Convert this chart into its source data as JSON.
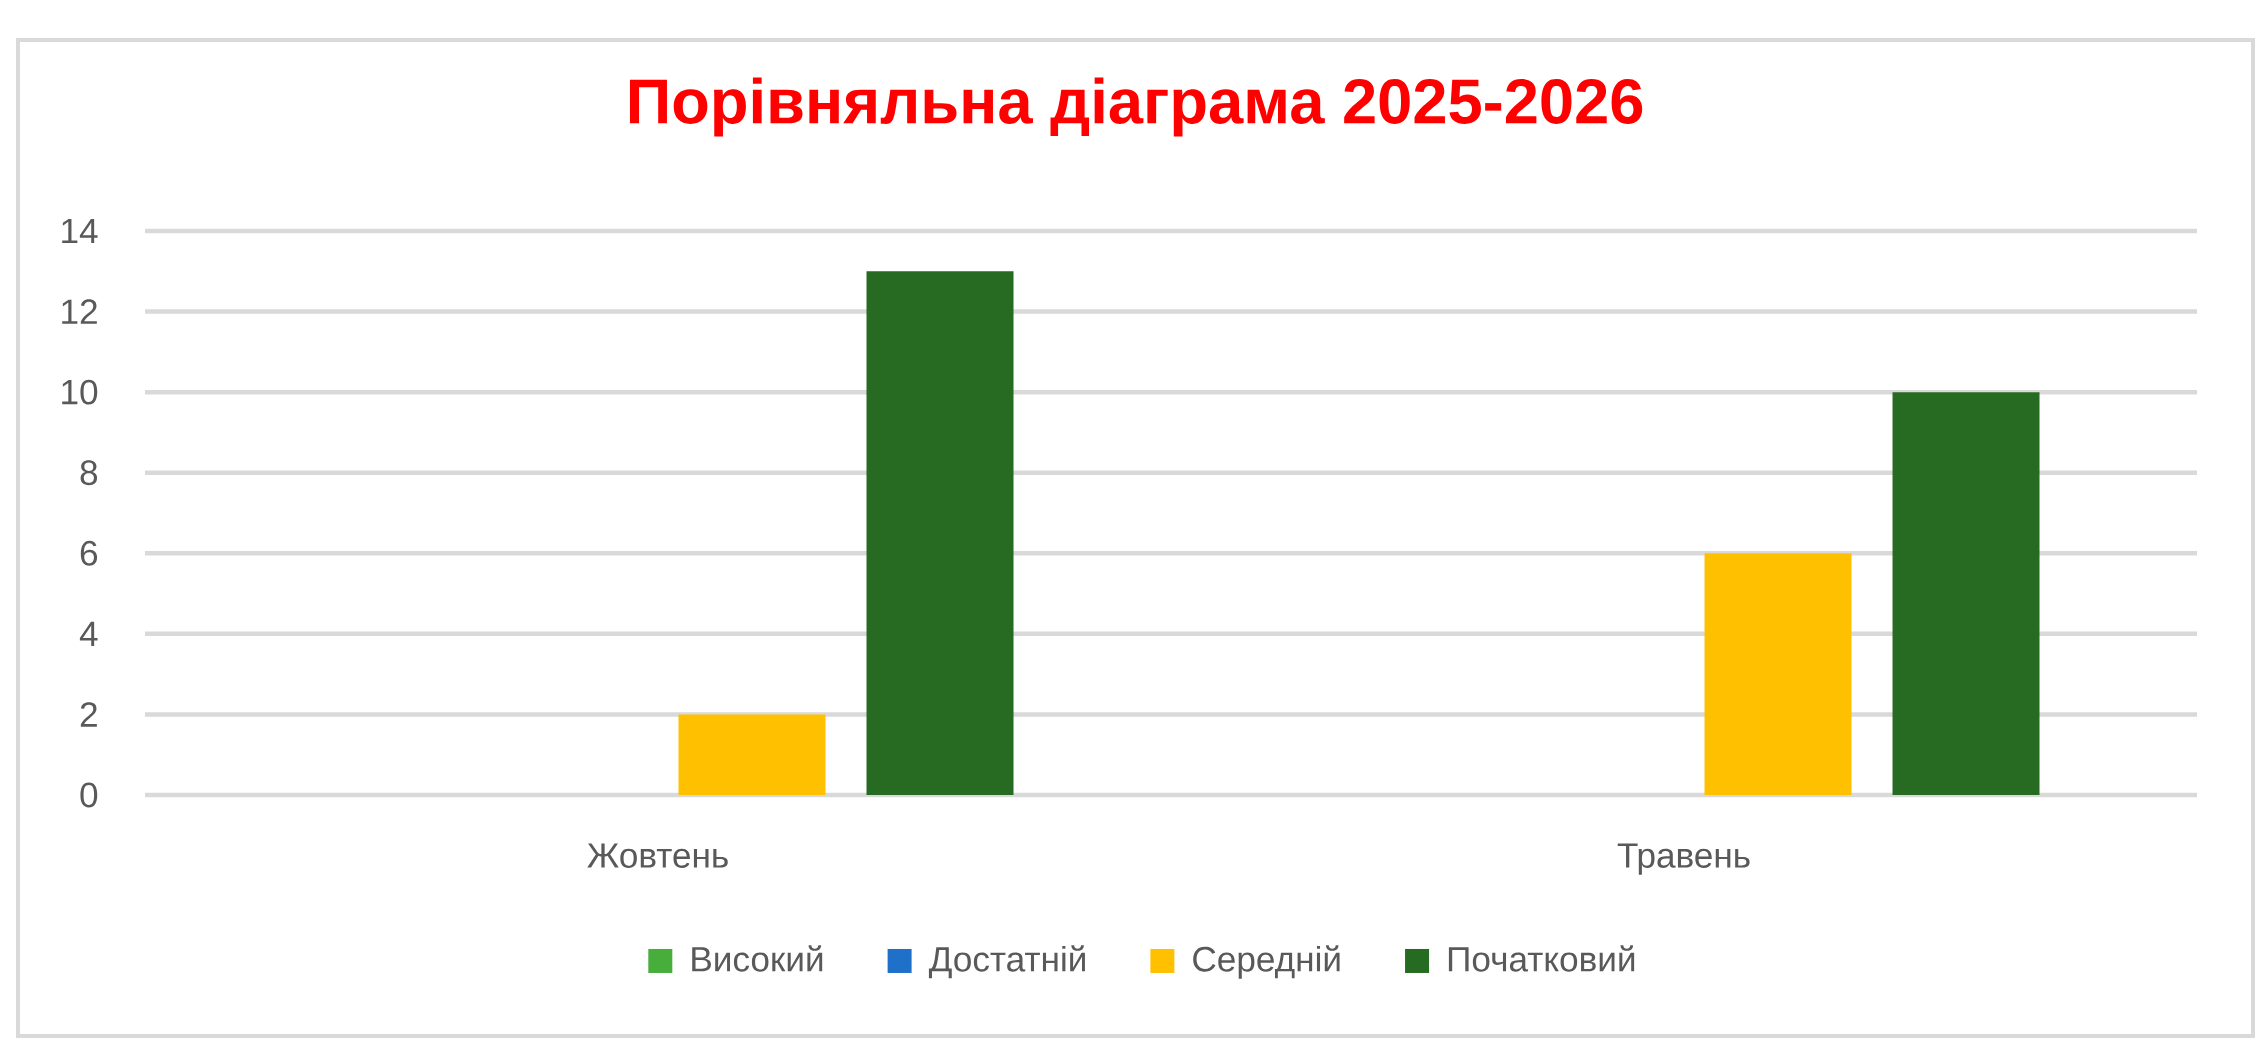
{
  "chart_data": {
    "type": "bar",
    "title": "Порівняльна діаграма 2025-2026",
    "categories": [
      "Жовтень",
      "Травень"
    ],
    "series": [
      {
        "name": "Високий",
        "color": "#47ad3b",
        "values": [
          0,
          0
        ]
      },
      {
        "name": "Достатній",
        "color": "#1e70c9",
        "values": [
          0,
          0
        ]
      },
      {
        "name": "Середній",
        "color": "#ffc000",
        "values": [
          2,
          6
        ]
      },
      {
        "name": "Початковий",
        "color": "#276a22",
        "values": [
          13,
          10
        ]
      }
    ],
    "ylim": [
      0,
      14
    ],
    "yticks": [
      0,
      2,
      4,
      6,
      8,
      10,
      12,
      14
    ],
    "grid": "y",
    "legend": "bottom"
  }
}
